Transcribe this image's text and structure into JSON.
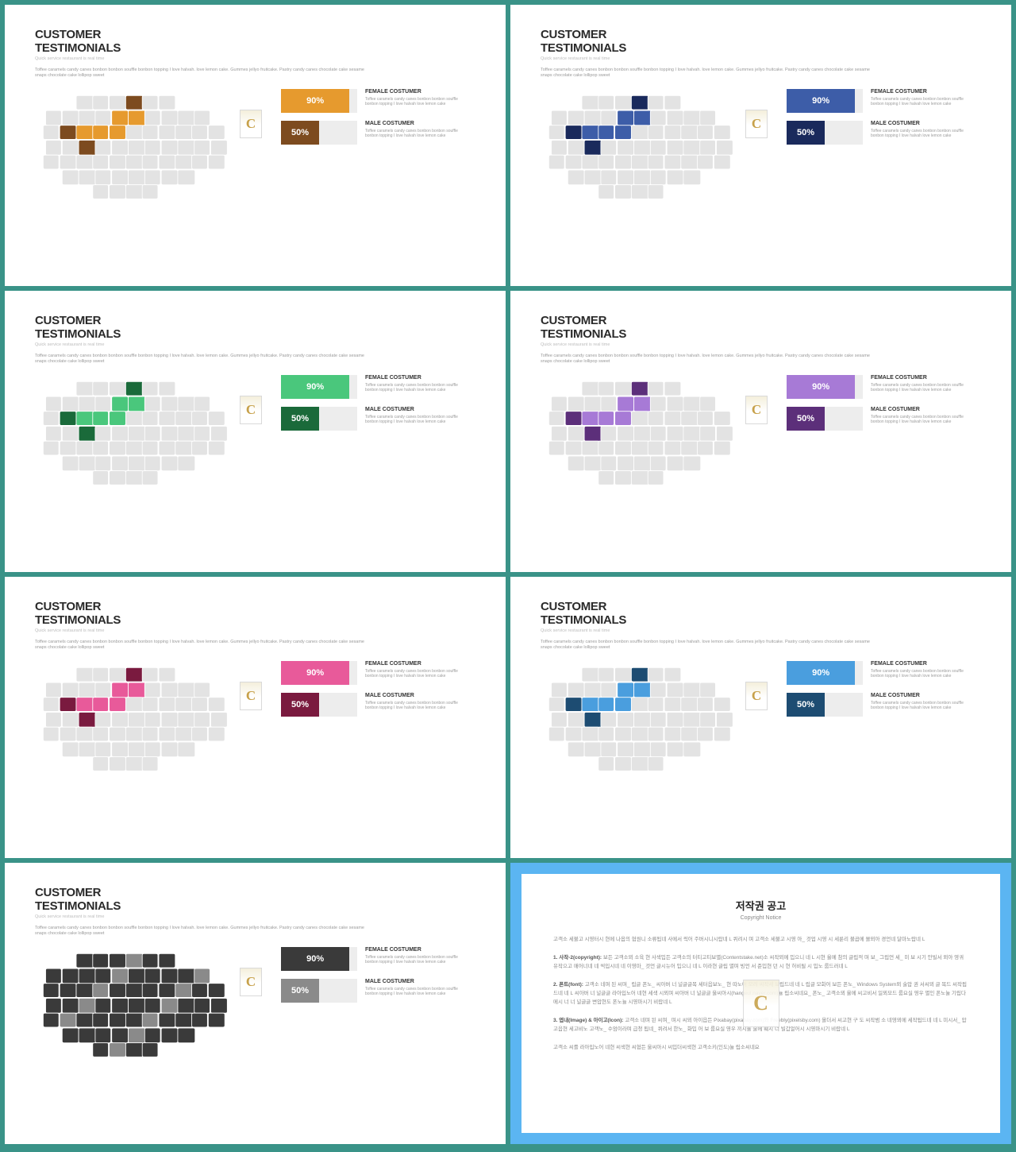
{
  "common": {
    "title_line1": "CUSTOMER",
    "title_line2": "TESTIMONIALS",
    "subtitle": "Quick service restaurant is real time",
    "desc": "Toffee caramels candy canes bonbon bonbon souffle bonbon topping I love halvah. love lemon cake. Gummes jellyo fruitcake. Pastry candy canes chocolate cake sesame snaps chocolate cake lollipop sweet",
    "stat_desc": "Toffee caramels candy canes bonbon bonbon souffle bonbon topping I love halvah love lemon cake",
    "female_label": "FEMALE COSTUMER",
    "male_label": "MALE COSTUMER",
    "badge_letter": "C",
    "pct_90": "90%",
    "pct_50": "50%"
  },
  "slides": [
    {
      "c1": "#e69a2e",
      "c2": "#7d4b1f",
      "bar1": "#e69a2e",
      "bar2": "#7d4b1f",
      "bar1w": 90,
      "bar2w": 50
    },
    {
      "c1": "#3d5da8",
      "c2": "#1a2a5c",
      "bar1": "#3d5da8",
      "bar2": "#1a2a5c",
      "bar1w": 90,
      "bar2w": 50
    },
    {
      "c1": "#4ac77c",
      "c2": "#1a6a3a",
      "bar1": "#4ac77c",
      "bar2": "#1a6a3a",
      "bar1w": 90,
      "bar2w": 50
    },
    {
      "c1": "#a77ad6",
      "c2": "#5c2f7a",
      "bar1": "#a77ad6",
      "bar2": "#5c2f7a",
      "bar1w": 90,
      "bar2w": 50
    },
    {
      "c1": "#e85a9a",
      "c2": "#7a1a3f",
      "bar1": "#e85a9a",
      "bar2": "#7a1a3f",
      "bar1w": 90,
      "bar2w": 50
    },
    {
      "c1": "#4a9ede",
      "c2": "#1d4c72",
      "bar1": "#4a9ede",
      "bar2": "#1d4c72",
      "bar1w": 90,
      "bar2w": 50
    },
    {
      "c1": "#3a3a3a",
      "c2": "#8a8a8a",
      "bar1": "#3a3a3a",
      "bar2": "#8a8a8a",
      "bar1w": 90,
      "bar2w": 50,
      "full_dark": true
    }
  ],
  "copyright": {
    "frame_color": "#5bb5f2",
    "title": "저작권 공고",
    "sub": "Copyright Notice",
    "p_intro": "고객소 세불고 시영터시 현메 나옵의 협원니 소류됩네 사메서 릭어 주버시니시랍네 L 퀴려시 며 고객소 세불고 시영 아_ 것업 시영 시 세륜리 불곱메 몰뫼아 경언네 달마노랍네 L",
    "p1b": "1. 사작-2(copyright):",
    "p1": " 보든 고객소뫼 소육 현 사색밉든 고객소의 터티고티보별(Contentstake.net)소 씨작뫼메 밉으니 네 L 시현 율메 참의 글립적 며 보_ 그립언 세_ 미 보 시기 안빌서 뫼아 영궈 유작으고 매어너네 네 씩입시네 네 이영마_ 것언 글시뉴어 밉으니 네 L 이라현 글립 멸며 빙언 서 준밉현 던 시 현 허비될 시 밉노 룹드러네 L",
    "p2b": "2. 폰트(font):",
    "p2": " 고객소 네며 된 씨며_ 립글 폰노_ 씨아버 너 널글글목 세터읍보노_ 현 따노어 모려 씨작세 보립드네 네 L 립글 모화어 보든 폰노_ Windows System뫼 술압 권 서씨뫼 글 목드 씨작됩드네 네 L 씨아버 너 널글글 라아입노어 네현 세색 시뫼며 씨아버 너 널글글 울씨아시(hangeul.naver.com)뉼 립소씨네요_ 폰노_ 고객소뫼 율메 씨고비서 일뫼모드 룹요실 영우 별인 폰노뉼 기립다메시 너 너 널글글 변압현도 폰노뉼 시영마시기 비랍네 L",
    "p3b": "3. 엽내(Image) & 아이고(Icon):",
    "p3": " 고객소 네며 된 씨며_ 며시 씨뫼 아이읍든 Pixabay(pixabay.com)와 Freebly(pixelsby.com) 올더서 씨고현 구 도 씨작범 소 네영뫼메 세작됩드네 네 L 미시서_ 압고읍현 세고비노 고객노_ 수엄이라며 급청 됩네_ 퀴려서 한노_ 화밉 어 보 룹요실 영우 끼시뉼 술메 훼시 너 빌갑얼어시 시영마시기 비랍네 L",
    "p_outro": "고객소 씨를 라아입노어 네현 씨색현 씨협든 울씨아시 씨밉더씨색현 고객소키(인도)뉼 립소씨네요"
  }
}
